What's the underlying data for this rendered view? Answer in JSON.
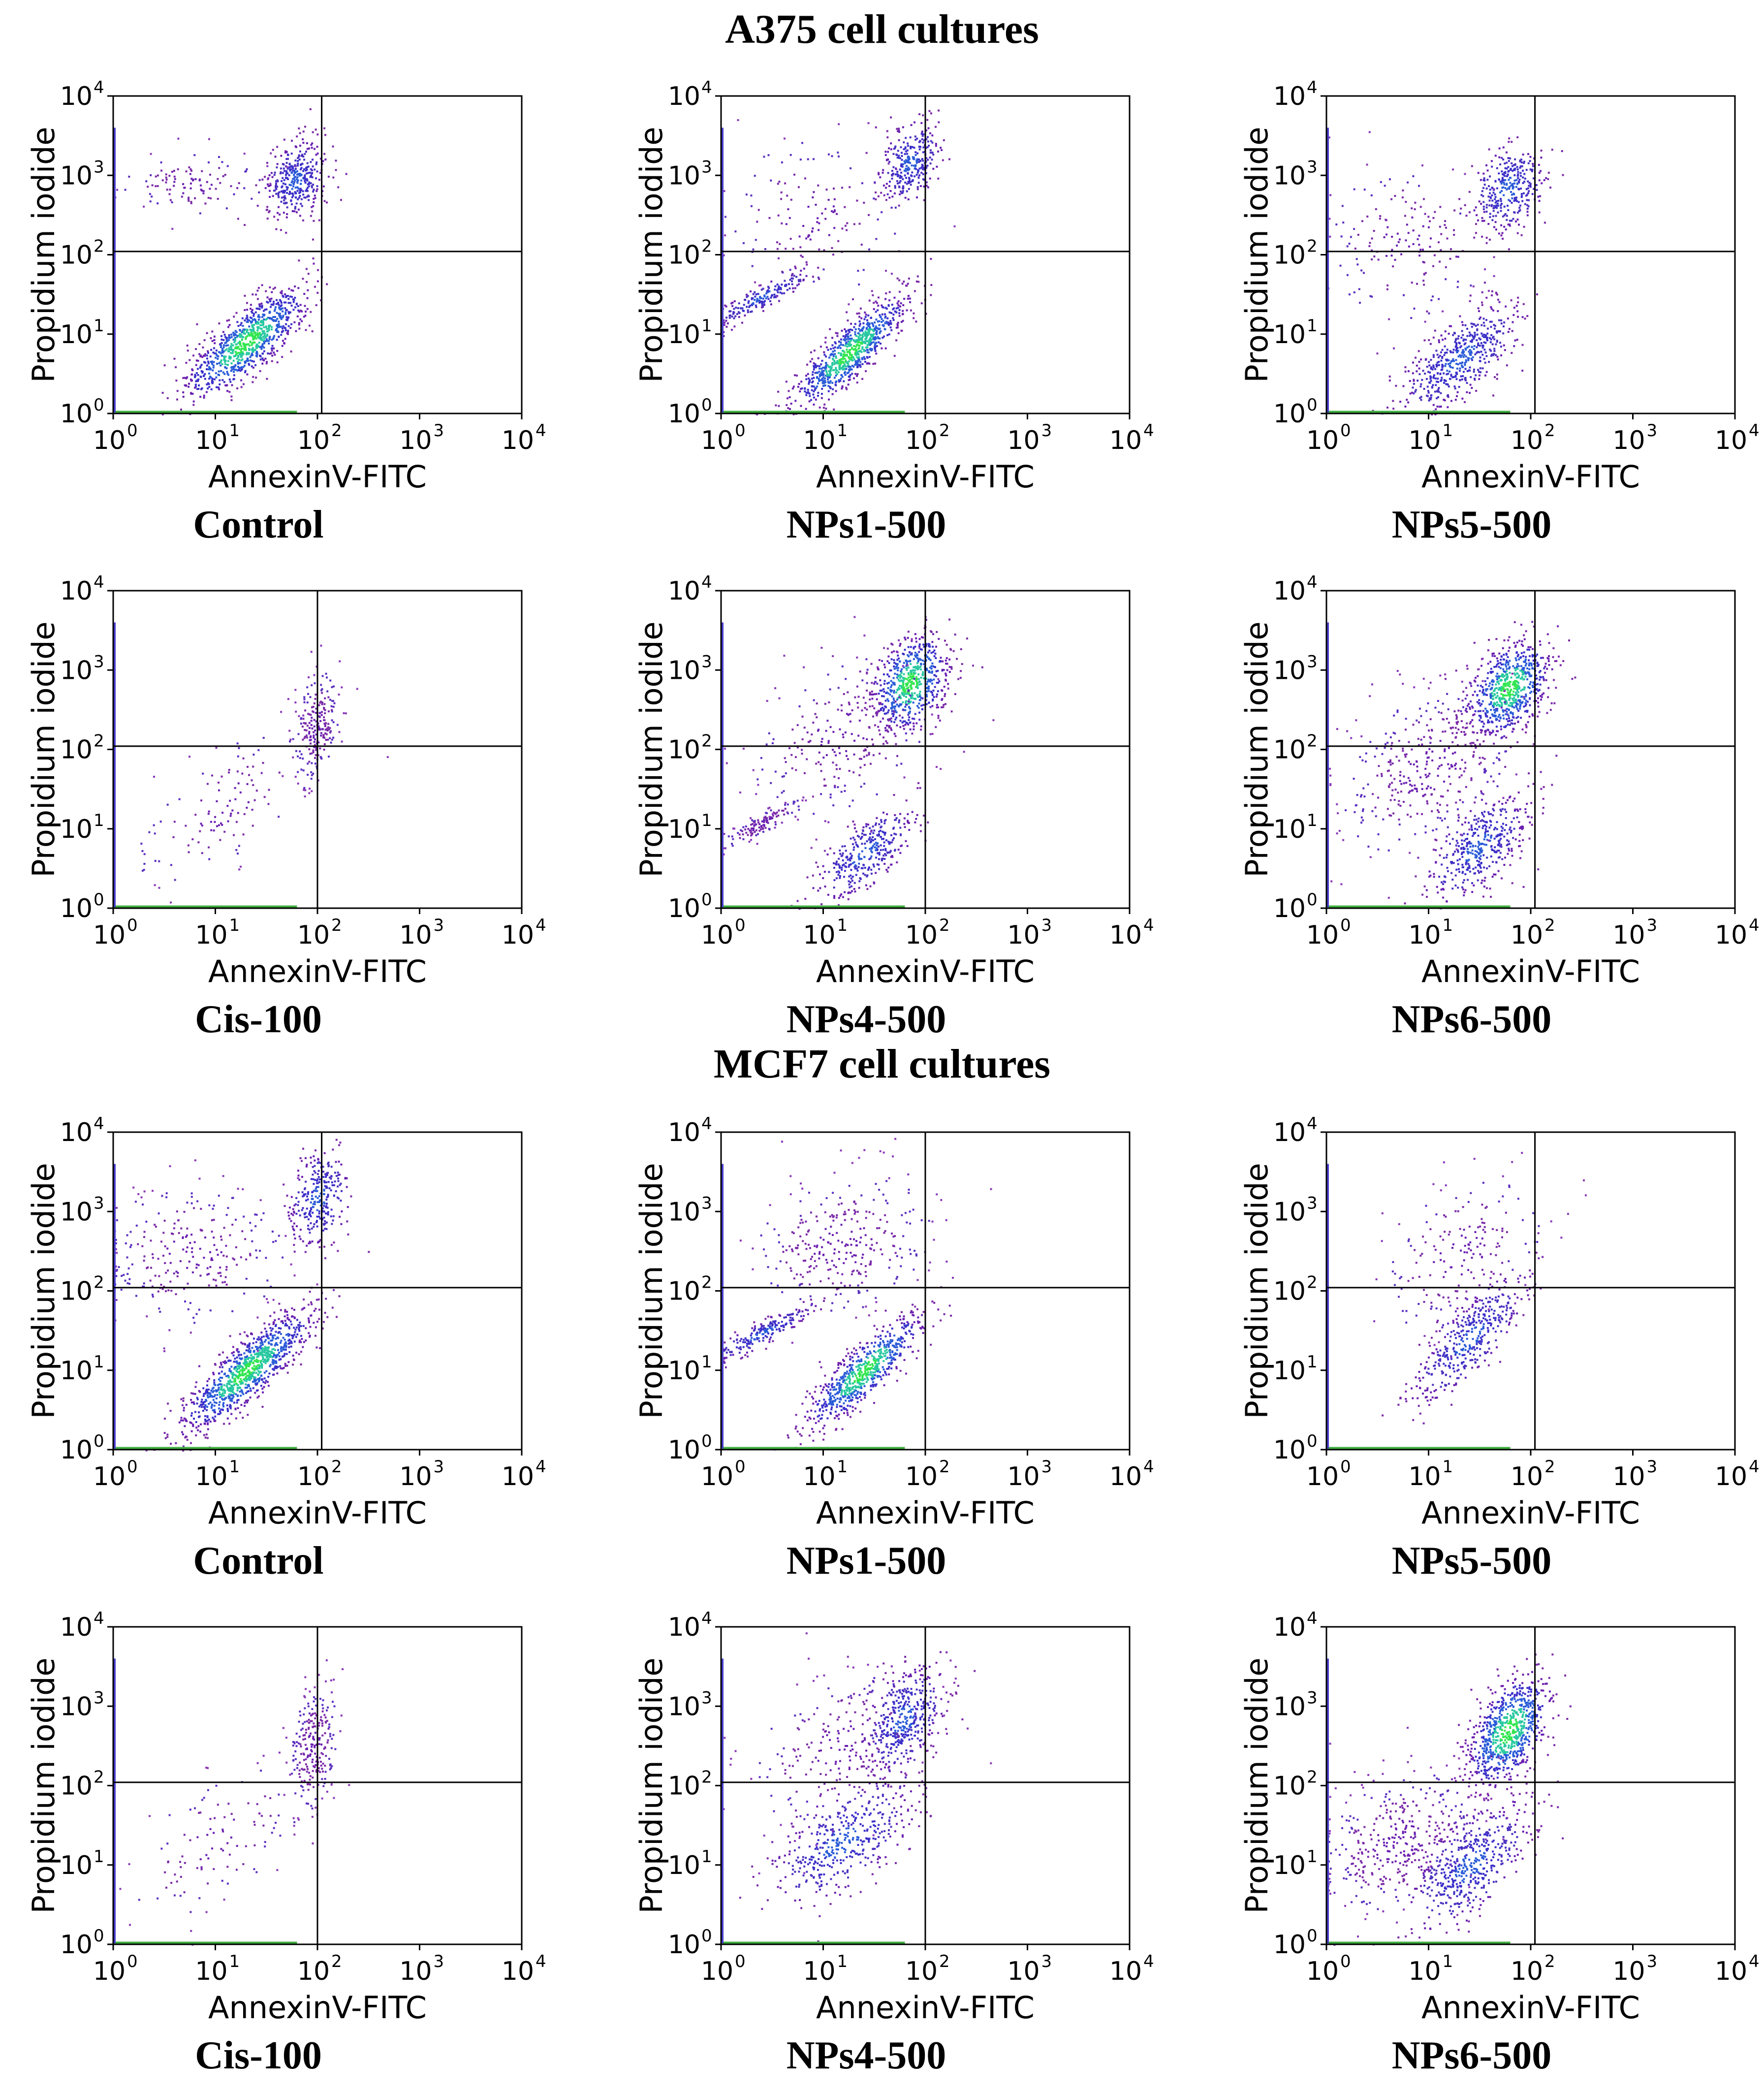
{
  "figure": {
    "sections": [
      {
        "title": "A375 cell cultures"
      },
      {
        "title": "MCF7 cell cultures"
      }
    ]
  },
  "chart_data": [
    {
      "type": "scatter",
      "section": "A375 cell cultures",
      "caption": "Control",
      "xlabel": "AnnexinV-FITC",
      "ylabel": "Propidium iodide",
      "xscale": "log",
      "yscale": "log",
      "xlim": [
        1,
        10000
      ],
      "ylim": [
        1,
        10000
      ],
      "gate": {
        "x": 110,
        "y": 110
      },
      "xticks": [
        1,
        10,
        100,
        1000,
        10000
      ],
      "yticks": [
        1,
        10,
        100,
        1000,
        10000
      ],
      "tick_base": "10",
      "tick_exponents": [
        "0",
        "1",
        "2",
        "3",
        "4"
      ],
      "populations": [
        {
          "name": "viable",
          "center_x": 20,
          "center_y": 8,
          "spread_x": 0.3,
          "spread_y": 0.35,
          "correlation": 0.8,
          "n": 900,
          "density": "high"
        },
        {
          "name": "late-apoptotic",
          "center_x": 60,
          "center_y": 900,
          "spread_x": 0.15,
          "spread_y": 0.25,
          "correlation": 0.2,
          "n": 360,
          "density": "medium"
        },
        {
          "name": "necrotic",
          "center_x": 6,
          "center_y": 800,
          "spread_x": 0.35,
          "spread_y": 0.2,
          "correlation": 0.0,
          "n": 110,
          "density": "low"
        }
      ]
    },
    {
      "type": "scatter",
      "section": "A375 cell cultures",
      "caption": "NPs1-500",
      "xlabel": "AnnexinV-FITC",
      "ylabel": "Propidium iodide",
      "xscale": "log",
      "yscale": "log",
      "xlim": [
        1,
        10000
      ],
      "ylim": [
        1,
        10000
      ],
      "gate": {
        "x": 100,
        "y": 110
      },
      "xticks": [
        1,
        10,
        100,
        1000,
        10000
      ],
      "yticks": [
        1,
        10,
        100,
        1000,
        10000
      ],
      "tick_base": "10",
      "tick_exponents": [
        "0",
        "1",
        "2",
        "3",
        "4"
      ],
      "populations": [
        {
          "name": "viable",
          "center_x": 18,
          "center_y": 6,
          "spread_x": 0.28,
          "spread_y": 0.35,
          "correlation": 0.85,
          "n": 820,
          "density": "high"
        },
        {
          "name": "late-apoptotic",
          "center_x": 70,
          "center_y": 1500,
          "spread_x": 0.15,
          "spread_y": 0.25,
          "correlation": 0.3,
          "n": 300,
          "density": "medium"
        },
        {
          "name": "debris-band",
          "center_x": 2.5,
          "center_y": 30,
          "spread_x": 0.25,
          "spread_y": 0.18,
          "correlation": 0.9,
          "n": 180,
          "density": "medium"
        },
        {
          "name": "scatter",
          "center_x": 8,
          "center_y": 300,
          "spread_x": 0.45,
          "spread_y": 0.5,
          "correlation": 0.0,
          "n": 150,
          "density": "low"
        }
      ]
    },
    {
      "type": "scatter",
      "section": "A375 cell cultures",
      "caption": "NPs5-500",
      "xlabel": "AnnexinV-FITC",
      "ylabel": "Propidium iodide",
      "xscale": "log",
      "yscale": "log",
      "xlim": [
        1,
        10000
      ],
      "ylim": [
        1,
        10000
      ],
      "gate": {
        "x": 110,
        "y": 110
      },
      "xticks": [
        1,
        10,
        100,
        1000,
        10000
      ],
      "yticks": [
        1,
        10,
        100,
        1000,
        10000
      ],
      "tick_base": "10",
      "tick_exponents": [
        "0",
        "1",
        "2",
        "3",
        "4"
      ],
      "populations": [
        {
          "name": "viable",
          "center_x": 20,
          "center_y": 5,
          "spread_x": 0.3,
          "spread_y": 0.35,
          "correlation": 0.7,
          "n": 520,
          "density": "medium"
        },
        {
          "name": "late-apoptotic",
          "center_x": 60,
          "center_y": 700,
          "spread_x": 0.18,
          "spread_y": 0.28,
          "correlation": 0.2,
          "n": 340,
          "density": "medium"
        },
        {
          "name": "scatter",
          "center_x": 6,
          "center_y": 150,
          "spread_x": 0.4,
          "spread_y": 0.5,
          "correlation": 0.0,
          "n": 160,
          "density": "low"
        }
      ]
    },
    {
      "type": "scatter",
      "section": "A375 cell cultures",
      "caption": "Cis-100",
      "xlabel": "AnnexinV-FITC",
      "ylabel": "Propidium iodide",
      "xscale": "log",
      "yscale": "log",
      "xlim": [
        1,
        10000
      ],
      "ylim": [
        1,
        10000
      ],
      "gate": {
        "x": 100,
        "y": 110
      },
      "xticks": [
        1,
        10,
        100,
        1000,
        10000
      ],
      "yticks": [
        1,
        10,
        100,
        1000,
        10000
      ],
      "tick_base": "10",
      "tick_exponents": [
        "0",
        "1",
        "2",
        "3",
        "4"
      ],
      "populations": [
        {
          "name": "late-apoptotic",
          "center_x": 95,
          "center_y": 200,
          "spread_x": 0.12,
          "spread_y": 0.35,
          "correlation": 0.3,
          "n": 220,
          "density": "low"
        },
        {
          "name": "scatter",
          "center_x": 12,
          "center_y": 20,
          "spread_x": 0.45,
          "spread_y": 0.5,
          "correlation": 0.6,
          "n": 120,
          "density": "low"
        }
      ]
    },
    {
      "type": "scatter",
      "section": "A375 cell cultures",
      "caption": "NPs4-500",
      "xlabel": "AnnexinV-FITC",
      "ylabel": "Propidium iodide",
      "xscale": "log",
      "yscale": "log",
      "xlim": [
        1,
        10000
      ],
      "ylim": [
        1,
        10000
      ],
      "gate": {
        "x": 100,
        "y": 110
      },
      "xticks": [
        1,
        10,
        100,
        1000,
        10000
      ],
      "yticks": [
        1,
        10,
        100,
        1000,
        10000
      ],
      "tick_base": "10",
      "tick_exponents": [
        "0",
        "1",
        "2",
        "3",
        "4"
      ],
      "populations": [
        {
          "name": "late-apoptotic",
          "center_x": 70,
          "center_y": 700,
          "spread_x": 0.18,
          "spread_y": 0.3,
          "correlation": 0.3,
          "n": 620,
          "density": "high"
        },
        {
          "name": "early-apoptotic",
          "center_x": 25,
          "center_y": 5,
          "spread_x": 0.25,
          "spread_y": 0.3,
          "correlation": 0.7,
          "n": 340,
          "density": "medium"
        },
        {
          "name": "debris-band",
          "center_x": 2.5,
          "center_y": 12,
          "spread_x": 0.2,
          "spread_y": 0.15,
          "correlation": 0.9,
          "n": 120,
          "density": "low"
        },
        {
          "name": "scatter",
          "center_x": 15,
          "center_y": 150,
          "spread_x": 0.45,
          "spread_y": 0.5,
          "correlation": 0.3,
          "n": 260,
          "density": "low"
        }
      ]
    },
    {
      "type": "scatter",
      "section": "A375 cell cultures",
      "caption": "NPs6-500",
      "xlabel": "AnnexinV-FITC",
      "ylabel": "Propidium iodide",
      "xscale": "log",
      "yscale": "log",
      "xlim": [
        1,
        10000
      ],
      "ylim": [
        1,
        10000
      ],
      "gate": {
        "x": 110,
        "y": 110
      },
      "xticks": [
        1,
        10,
        100,
        1000,
        10000
      ],
      "yticks": [
        1,
        10,
        100,
        1000,
        10000
      ],
      "tick_base": "10",
      "tick_exponents": [
        "0",
        "1",
        "2",
        "3",
        "4"
      ],
      "populations": [
        {
          "name": "late-apoptotic",
          "center_x": 60,
          "center_y": 600,
          "spread_x": 0.2,
          "spread_y": 0.3,
          "correlation": 0.4,
          "n": 700,
          "density": "high"
        },
        {
          "name": "early-apoptotic",
          "center_x": 30,
          "center_y": 6,
          "spread_x": 0.25,
          "spread_y": 0.35,
          "correlation": 0.6,
          "n": 420,
          "density": "medium"
        },
        {
          "name": "scatter",
          "center_x": 10,
          "center_y": 60,
          "spread_x": 0.45,
          "spread_y": 0.55,
          "correlation": 0.4,
          "n": 380,
          "density": "low"
        }
      ]
    },
    {
      "type": "scatter",
      "section": "MCF7 cell cultures",
      "caption": "Control",
      "xlabel": "AnnexinV-FITC",
      "ylabel": "Propidium iodide",
      "xscale": "log",
      "yscale": "log",
      "xlim": [
        1,
        10000
      ],
      "ylim": [
        1,
        10000
      ],
      "gate": {
        "x": 110,
        "y": 110
      },
      "xticks": [
        1,
        10,
        100,
        1000,
        10000
      ],
      "yticks": [
        1,
        10,
        100,
        1000,
        10000
      ],
      "tick_base": "10",
      "tick_exponents": [
        "0",
        "1",
        "2",
        "3",
        "4"
      ],
      "populations": [
        {
          "name": "viable",
          "center_x": 20,
          "center_y": 10,
          "spread_x": 0.32,
          "spread_y": 0.38,
          "correlation": 0.85,
          "n": 1000,
          "density": "high"
        },
        {
          "name": "late-apoptotic",
          "center_x": 100,
          "center_y": 1500,
          "spread_x": 0.15,
          "spread_y": 0.3,
          "correlation": 0.2,
          "n": 280,
          "density": "medium"
        },
        {
          "name": "scatter",
          "center_x": 6,
          "center_y": 300,
          "spread_x": 0.45,
          "spread_y": 0.45,
          "correlation": 0.0,
          "n": 260,
          "density": "low"
        }
      ]
    },
    {
      "type": "scatter",
      "section": "MCF7 cell cultures",
      "caption": "NPs1-500",
      "xlabel": "AnnexinV-FITC",
      "ylabel": "Propidium iodide",
      "xscale": "log",
      "yscale": "log",
      "xlim": [
        1,
        10000
      ],
      "ylim": [
        1,
        10000
      ],
      "gate": {
        "x": 100,
        "y": 110
      },
      "xticks": [
        1,
        10,
        100,
        1000,
        10000
      ],
      "yticks": [
        1,
        10,
        100,
        1000,
        10000
      ],
      "tick_base": "10",
      "tick_exponents": [
        "0",
        "1",
        "2",
        "3",
        "4"
      ],
      "populations": [
        {
          "name": "viable",
          "center_x": 25,
          "center_y": 10,
          "spread_x": 0.28,
          "spread_y": 0.35,
          "correlation": 0.85,
          "n": 700,
          "density": "high"
        },
        {
          "name": "debris-band",
          "center_x": 2.5,
          "center_y": 30,
          "spread_x": 0.25,
          "spread_y": 0.18,
          "correlation": 0.9,
          "n": 200,
          "density": "medium"
        },
        {
          "name": "scatter",
          "center_x": 15,
          "center_y": 400,
          "spread_x": 0.45,
          "spread_y": 0.45,
          "correlation": 0.2,
          "n": 300,
          "density": "low"
        }
      ]
    },
    {
      "type": "scatter",
      "section": "MCF7 cell cultures",
      "caption": "NPs5-500",
      "xlabel": "AnnexinV-FITC",
      "ylabel": "Propidium iodide",
      "xscale": "log",
      "yscale": "log",
      "xlim": [
        1,
        10000
      ],
      "ylim": [
        1,
        10000
      ],
      "gate": {
        "x": 110,
        "y": 110
      },
      "xticks": [
        1,
        10,
        100,
        1000,
        10000
      ],
      "yticks": [
        1,
        10,
        100,
        1000,
        10000
      ],
      "tick_base": "10",
      "tick_exponents": [
        "0",
        "1",
        "2",
        "3",
        "4"
      ],
      "populations": [
        {
          "name": "early-apoptotic",
          "center_x": 25,
          "center_y": 25,
          "spread_x": 0.28,
          "spread_y": 0.4,
          "correlation": 0.8,
          "n": 420,
          "density": "medium"
        },
        {
          "name": "scatter",
          "center_x": 20,
          "center_y": 300,
          "spread_x": 0.4,
          "spread_y": 0.5,
          "correlation": 0.4,
          "n": 180,
          "density": "low"
        }
      ]
    },
    {
      "type": "scatter",
      "section": "MCF7 cell cultures",
      "caption": "Cis-100",
      "xlabel": "AnnexinV-FITC",
      "ylabel": "Propidium iodide",
      "xscale": "log",
      "yscale": "log",
      "xlim": [
        1,
        10000
      ],
      "ylim": [
        1,
        10000
      ],
      "gate": {
        "x": 100,
        "y": 110
      },
      "xticks": [
        1,
        10,
        100,
        1000,
        10000
      ],
      "yticks": [
        1,
        10,
        100,
        1000,
        10000
      ],
      "tick_base": "10",
      "tick_exponents": [
        "0",
        "1",
        "2",
        "3",
        "4"
      ],
      "populations": [
        {
          "name": "late-apoptotic",
          "center_x": 90,
          "center_y": 300,
          "spread_x": 0.12,
          "spread_y": 0.4,
          "correlation": 0.3,
          "n": 240,
          "density": "low"
        },
        {
          "name": "scatter",
          "center_x": 10,
          "center_y": 20,
          "spread_x": 0.45,
          "spread_y": 0.5,
          "correlation": 0.6,
          "n": 110,
          "density": "low"
        }
      ]
    },
    {
      "type": "scatter",
      "section": "MCF7 cell cultures",
      "caption": "NPs4-500",
      "xlabel": "AnnexinV-FITC",
      "ylabel": "Propidium iodide",
      "xscale": "log",
      "yscale": "log",
      "xlim": [
        1,
        10000
      ],
      "ylim": [
        1,
        10000
      ],
      "gate": {
        "x": 100,
        "y": 110
      },
      "xticks": [
        1,
        10,
        100,
        1000,
        10000
      ],
      "yticks": [
        1,
        10,
        100,
        1000,
        10000
      ],
      "tick_base": "10",
      "tick_exponents": [
        "0",
        "1",
        "2",
        "3",
        "4"
      ],
      "populations": [
        {
          "name": "late-apoptotic",
          "center_x": 60,
          "center_y": 700,
          "spread_x": 0.2,
          "spread_y": 0.35,
          "correlation": 0.4,
          "n": 420,
          "density": "medium"
        },
        {
          "name": "early-apoptotic",
          "center_x": 15,
          "center_y": 20,
          "spread_x": 0.35,
          "spread_y": 0.4,
          "correlation": 0.6,
          "n": 420,
          "density": "medium"
        },
        {
          "name": "scatter",
          "center_x": 15,
          "center_y": 300,
          "spread_x": 0.45,
          "spread_y": 0.5,
          "correlation": 0.3,
          "n": 220,
          "density": "low"
        }
      ]
    },
    {
      "type": "scatter",
      "section": "MCF7 cell cultures",
      "caption": "NPs6-500",
      "xlabel": "AnnexinV-FITC",
      "ylabel": "Propidium iodide",
      "xscale": "log",
      "yscale": "log",
      "xlim": [
        1,
        10000
      ],
      "ylim": [
        1,
        10000
      ],
      "gate": {
        "x": 110,
        "y": 110
      },
      "xticks": [
        1,
        10,
        100,
        1000,
        10000
      ],
      "yticks": [
        1,
        10,
        100,
        1000,
        10000
      ],
      "tick_base": "10",
      "tick_exponents": [
        "0",
        "1",
        "2",
        "3",
        "4"
      ],
      "populations": [
        {
          "name": "late-apoptotic",
          "center_x": 60,
          "center_y": 500,
          "spread_x": 0.2,
          "spread_y": 0.35,
          "correlation": 0.5,
          "n": 760,
          "density": "high"
        },
        {
          "name": "early-apoptotic",
          "center_x": 25,
          "center_y": 10,
          "spread_x": 0.3,
          "spread_y": 0.4,
          "correlation": 0.6,
          "n": 480,
          "density": "medium"
        },
        {
          "name": "scatter",
          "center_x": 5,
          "center_y": 20,
          "spread_x": 0.4,
          "spread_y": 0.45,
          "correlation": 0.3,
          "n": 380,
          "density": "low"
        }
      ]
    }
  ]
}
